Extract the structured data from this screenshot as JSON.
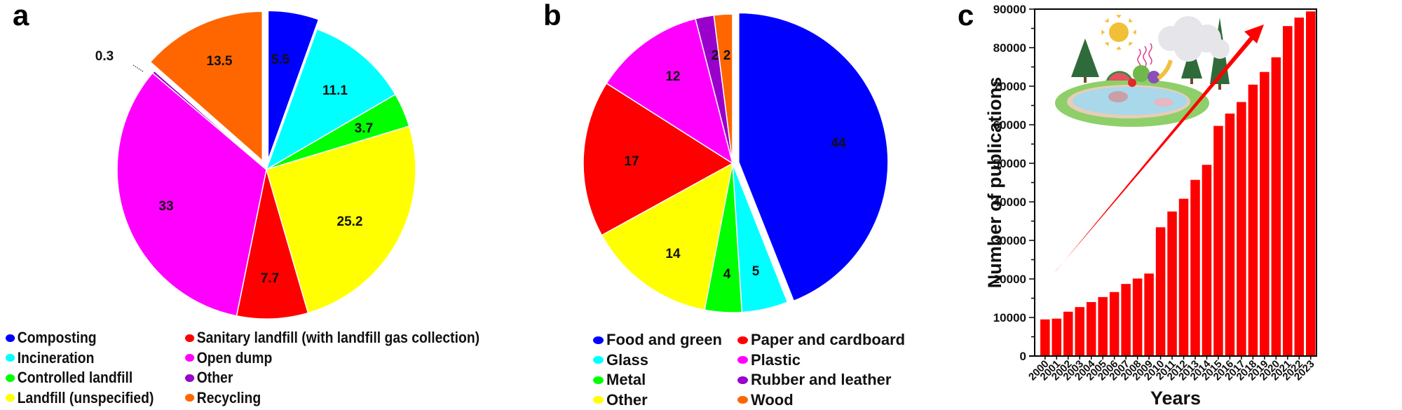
{
  "panels": {
    "a": {
      "letter": "a"
    },
    "b": {
      "letter": "b"
    },
    "c": {
      "letter": "c"
    }
  },
  "chart_data": [
    {
      "type": "pie",
      "panel": "a",
      "title": "",
      "start_angle_deg": 0,
      "direction": "clockwise",
      "slices": [
        {
          "label": "Composting",
          "value": 5.5,
          "color": "#0000ff",
          "exploded": true
        },
        {
          "label": "Incineration",
          "value": 11.1,
          "color": "#00ffff",
          "exploded": false
        },
        {
          "label": "Controlled landfill",
          "value": 3.7,
          "color": "#00ff00",
          "exploded": false
        },
        {
          "label": "Landfill (unspecified)",
          "value": 25.2,
          "color": "#ffff00",
          "exploded": false
        },
        {
          "label": "Sanitary landfill (with landfill gas collection)",
          "value": 7.7,
          "color": "#ff0000",
          "exploded": false
        },
        {
          "label": "Open dump",
          "value": 33,
          "color": "#ff00ff",
          "exploded": false
        },
        {
          "label": "Other",
          "value": 0.3,
          "color": "#9900cc",
          "exploded": false
        },
        {
          "label": "Recycling",
          "value": 13.5,
          "color": "#ff6600",
          "exploded": true
        }
      ],
      "legend": [
        [
          "Composting",
          "Incineration",
          "Controlled landfill",
          "Landfill (unspecified)"
        ],
        [
          "Sanitary landfill (with landfill gas collection)",
          "Open dump",
          "Other",
          "Recycling"
        ]
      ],
      "legend_position": "bottom"
    },
    {
      "type": "pie",
      "panel": "b",
      "title": "",
      "start_angle_deg": 0,
      "direction": "clockwise",
      "slices": [
        {
          "label": "Food and green",
          "value": 44,
          "color": "#0000ff",
          "exploded": true
        },
        {
          "label": "Glass",
          "value": 5,
          "color": "#00ffff",
          "exploded": false
        },
        {
          "label": "Metal",
          "value": 4,
          "color": "#00ff00",
          "exploded": false
        },
        {
          "label": "Other",
          "value": 14,
          "color": "#ffff00",
          "exploded": false
        },
        {
          "label": "Paper and cardboard",
          "value": 17,
          "color": "#ff0000",
          "exploded": false
        },
        {
          "label": "Plastic",
          "value": 12,
          "color": "#ff00ff",
          "exploded": false
        },
        {
          "label": "Rubber and leather",
          "value": 2,
          "color": "#9900cc",
          "exploded": false
        },
        {
          "label": "Wood",
          "value": 2,
          "color": "#ff6600",
          "exploded": false
        }
      ],
      "legend": [
        [
          "Food and green",
          "Glass",
          "Metal",
          "Other"
        ],
        [
          "Paper and cardboard",
          "Plastic",
          "Rubber and leather",
          "Wood"
        ]
      ],
      "legend_position": "bottom"
    },
    {
      "type": "bar",
      "panel": "c",
      "title": "",
      "xlabel": "Years",
      "ylabel": "Number of publications",
      "ylim": [
        0,
        90000
      ],
      "yticks": [
        0,
        10000,
        20000,
        30000,
        40000,
        50000,
        60000,
        70000,
        80000,
        90000
      ],
      "bar_color": "#ff0000",
      "grid": false,
      "annotations": [
        "upward red trend arrow",
        "environment illustration (sun, trees, fruits and vegetables, pond with squid)"
      ],
      "categories": [
        "2000",
        "2001",
        "2002",
        "2003",
        "2004",
        "2005",
        "2006",
        "2007",
        "2008",
        "2009",
        "2010",
        "2011",
        "2012",
        "2013",
        "2014",
        "2015",
        "2016",
        "2017",
        "2018",
        "2019",
        "2020",
        "2021",
        "2022",
        "2023"
      ],
      "values": [
        9500,
        9700,
        11500,
        12700,
        14000,
        15300,
        16600,
        18700,
        20100,
        21400,
        33400,
        37500,
        40800,
        45700,
        49600,
        59700,
        62900,
        65900,
        70400,
        73700,
        77500,
        85600,
        87800,
        89400
      ]
    }
  ]
}
